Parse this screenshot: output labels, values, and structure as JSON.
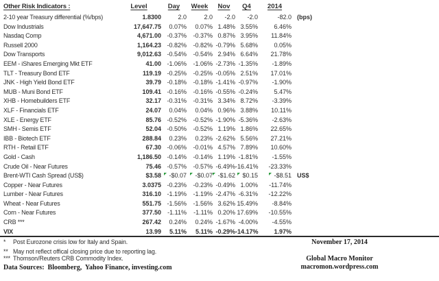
{
  "colors": {
    "text": "#2e2e2e",
    "rule": "#2b2b2b",
    "flag_green": "#2f9e41"
  },
  "table": {
    "title": "Other Risk Indicators :",
    "columns": [
      "Level",
      "Day",
      "Week",
      "Nov",
      "Q4",
      "2014"
    ],
    "rows": [
      {
        "label": "2-10 year Treasury differential (%/bps)",
        "level": "1.8300",
        "day": "2.0",
        "week": "2.0",
        "nov": "-2.0",
        "q4": "-2.0",
        "y2014": "-82.0",
        "extra": "(bps)",
        "bold": false,
        "flags": false
      },
      {
        "label": "Dow Industrials",
        "level": "17,647.75",
        "day": "0.07%",
        "week": "0.07%",
        "nov": "1.48%",
        "q4": "3.55%",
        "y2014": "6.46%",
        "extra": "",
        "bold": false,
        "flags": false
      },
      {
        "label": "Nasdaq Comp",
        "level": "4,671.00",
        "day": "-0.37%",
        "week": "-0.37%",
        "nov": "0.87%",
        "q4": "3.95%",
        "y2014": "11.84%",
        "extra": "",
        "bold": false,
        "flags": false
      },
      {
        "label": "Russell 2000",
        "level": "1,164.23",
        "day": "-0.82%",
        "week": "-0.82%",
        "nov": "-0.79%",
        "q4": "5.68%",
        "y2014": "0.05%",
        "extra": "",
        "bold": false,
        "flags": false
      },
      {
        "label": "Dow Transports",
        "level": "9,012.63",
        "day": "-0.54%",
        "week": "-0.54%",
        "nov": "2.94%",
        "q4": "6.64%",
        "y2014": "21.78%",
        "extra": "",
        "bold": false,
        "flags": false
      },
      {
        "label": "EEM - iShares Emerging Mkt ETF",
        "level": "41.00",
        "day": "-1.06%",
        "week": "-1.06%",
        "nov": "-2.73%",
        "q4": "-1.35%",
        "y2014": "-1.89%",
        "extra": "",
        "bold": false,
        "flags": false
      },
      {
        "label": "TLT - Treasury Bond ETF",
        "level": "119.19",
        "day": "-0.25%",
        "week": "-0.25%",
        "nov": "-0.05%",
        "q4": "2.51%",
        "y2014": "17.01%",
        "extra": "",
        "bold": false,
        "flags": false
      },
      {
        "label": "JNK - High Yield Bond ETF",
        "level": "39.79",
        "day": "-0.18%",
        "week": "-0.18%",
        "nov": "-1.41%",
        "q4": "-0.97%",
        "y2014": "-1.90%",
        "extra": "",
        "bold": false,
        "flags": false
      },
      {
        "label": "MUB - Muni Bond ETF",
        "level": "109.41",
        "day": "-0.16%",
        "week": "-0.16%",
        "nov": "-0.55%",
        "q4": "-0.24%",
        "y2014": "5.47%",
        "extra": "",
        "bold": false,
        "flags": false
      },
      {
        "label": "XHB - Homebuilders ETF",
        "level": "32.17",
        "day": "-0.31%",
        "week": "-0.31%",
        "nov": "3.34%",
        "q4": "8.72%",
        "y2014": "-3.39%",
        "extra": "",
        "bold": false,
        "flags": false
      },
      {
        "label": "XLF - Financials ETF",
        "level": "24.07",
        "day": "0.04%",
        "week": "0.04%",
        "nov": "0.96%",
        "q4": "3.88%",
        "y2014": "10.11%",
        "extra": "",
        "bold": false,
        "flags": false
      },
      {
        "label": "XLE - Energy ETF",
        "level": "85.76",
        "day": "-0.52%",
        "week": "-0.52%",
        "nov": "-1.90%",
        "q4": "-5.36%",
        "y2014": "-2.63%",
        "extra": "",
        "bold": false,
        "flags": false
      },
      {
        "label": "SMH - Semis ETF",
        "level": "52.04",
        "day": "-0.50%",
        "week": "-0.52%",
        "nov": "1.19%",
        "q4": "1.86%",
        "y2014": "22.65%",
        "extra": "",
        "bold": false,
        "flags": false
      },
      {
        "label": "IBB - Biotech ETF",
        "level": "288.84",
        "day": "0.23%",
        "week": "0.23%",
        "nov": "-2.62%",
        "q4": "5.56%",
        "y2014": "27.21%",
        "extra": "",
        "bold": false,
        "flags": false
      },
      {
        "label": "RTH - Retail ETF",
        "level": "67.30",
        "day": "-0.06%",
        "week": "-0.01%",
        "nov": "4.57%",
        "q4": "7.89%",
        "y2014": "10.60%",
        "extra": "",
        "bold": false,
        "flags": false
      },
      {
        "label": "Gold - Cash",
        "level": "1,186.50",
        "day": "-0.14%",
        "week": "-0.14%",
        "nov": "1.19%",
        "q4": "-1.81%",
        "y2014": "-1.55%",
        "extra": "",
        "bold": false,
        "flags": false
      },
      {
        "label": "Crude Oil - Near Futures",
        "level": "75.46",
        "day": "-0.57%",
        "week": "-0.57%",
        "nov": "-6.49%",
        "q4": "-16.41%",
        "y2014": "-23.33%",
        "extra": "",
        "bold": false,
        "flags": false
      },
      {
        "label": "Brent-WTI Cash Spread (US$)",
        "level": "$3.58",
        "day": "-$0.07",
        "week": "-$0.07",
        "nov": "-$1.62",
        "q4": "$0.15",
        "y2014": "-$8.51",
        "extra": "US$",
        "bold": false,
        "flags": true
      },
      {
        "label": "Copper - Near Futures",
        "level": "3.0375",
        "day": "-0.23%",
        "week": "-0.23%",
        "nov": "-0.49%",
        "q4": "1.00%",
        "y2014": "-11.74%",
        "extra": "",
        "bold": false,
        "flags": false
      },
      {
        "label": "Lumber - Near Futures",
        "level": "316.10",
        "day": "-1.19%",
        "week": "-1.19%",
        "nov": "-2.47%",
        "q4": "-6.31%",
        "y2014": "-12.22%",
        "extra": "",
        "bold": false,
        "flags": false
      },
      {
        "label": "Wheat - Near Futures",
        "level": "551.75",
        "day": "-1.56%",
        "week": "-1.56%",
        "nov": "3.62%",
        "q4": "15.49%",
        "y2014": "-8.84%",
        "extra": "",
        "bold": false,
        "flags": false
      },
      {
        "label": "Corn - Near Futures",
        "level": "377.50",
        "day": "-1.11%",
        "week": "-1.11%",
        "nov": "0.20%",
        "q4": "17.69%",
        "y2014": "-10.55%",
        "extra": "",
        "bold": false,
        "flags": false
      },
      {
        "label": "CRB ***",
        "level": "267.42",
        "day": "0.24%",
        "week": "0.24%",
        "nov": "-1.67%",
        "q4": "-4.00%",
        "y2014": "-4.55%",
        "extra": "",
        "bold": false,
        "flags": false
      },
      {
        "label": "VIX",
        "level": "13.99",
        "day": "5.11%",
        "week": "5.11%",
        "nov": "-0.29%",
        "q4": "-14.17%",
        "y2014": "1.97%",
        "extra": "",
        "bold": true,
        "flags": false
      }
    ]
  },
  "footnotes": [
    {
      "marker": "*",
      "text": "Post Eurozone crisis low for Italy and Spain."
    },
    {
      "marker": "**",
      "text": "May not reflect offical closing price due to reporting lag."
    },
    {
      "marker": "***",
      "text": "Thomson/Reuters CRB Commodity Index."
    }
  ],
  "data_sources": "Data Sources:  Bloomberg,  Yahoo Finance, investing.com",
  "date": "November 17, 2014",
  "brand": {
    "name": "Global Macro Monitor",
    "url": "macromon.wordpress.com"
  }
}
